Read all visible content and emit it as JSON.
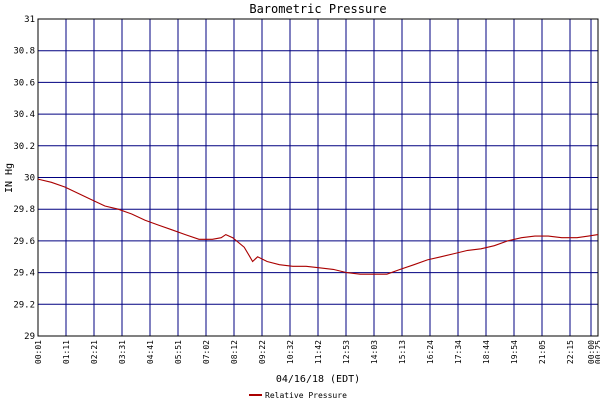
{
  "chart_data": {
    "type": "line",
    "title": "Barometric Pressure",
    "xlabel": "04/16/18 (EDT)",
    "ylabel": "IN Hg",
    "ylim": [
      29,
      31
    ],
    "yticks": [
      29,
      29.2,
      29.4,
      29.6,
      29.8,
      30,
      30.2,
      30.4,
      30.6,
      30.8,
      31
    ],
    "ytick_labels": [
      "29",
      "29.2",
      "29.4",
      "29.6",
      "29.8",
      "30",
      "30.2",
      "30.4",
      "30.6",
      "30.8",
      "31"
    ],
    "xtick_labels": [
      "00:01",
      "01:11",
      "02:21",
      "03:31",
      "04:41",
      "05:51",
      "07:02",
      "08:12",
      "09:22",
      "10:32",
      "11:42",
      "12:53",
      "14:03",
      "15:13",
      "16:24",
      "17:34",
      "18:44",
      "19:54",
      "21:05",
      "22:15",
      "00:00",
      "00:25"
    ],
    "grid": true,
    "legend": "bottom-center",
    "colors": {
      "series": "#aa0000",
      "grid": "#000080",
      "axes": "#000000",
      "background": "#ffffff"
    },
    "series": [
      {
        "name": "Relative Pressure",
        "points": [
          [
            "00:01",
            29.99
          ],
          [
            "00:36",
            29.97
          ],
          [
            "01:11",
            29.94
          ],
          [
            "01:46",
            29.9
          ],
          [
            "02:21",
            29.86
          ],
          [
            "02:56",
            29.82
          ],
          [
            "03:31",
            29.8
          ],
          [
            "04:06",
            29.77
          ],
          [
            "04:41",
            29.73
          ],
          [
            "05:16",
            29.7
          ],
          [
            "05:51",
            29.67
          ],
          [
            "06:26",
            29.64
          ],
          [
            "07:02",
            29.61
          ],
          [
            "07:37",
            29.61
          ],
          [
            "08:00",
            29.62
          ],
          [
            "08:12",
            29.64
          ],
          [
            "08:30",
            29.62
          ],
          [
            "09:00",
            29.56
          ],
          [
            "09:15",
            29.5
          ],
          [
            "09:22",
            29.47
          ],
          [
            "09:35",
            29.5
          ],
          [
            "10:00",
            29.47
          ],
          [
            "10:32",
            29.45
          ],
          [
            "11:07",
            29.44
          ],
          [
            "11:42",
            29.44
          ],
          [
            "12:17",
            29.43
          ],
          [
            "12:53",
            29.42
          ],
          [
            "13:28",
            29.4
          ],
          [
            "14:03",
            29.39
          ],
          [
            "14:38",
            29.39
          ],
          [
            "15:13",
            29.39
          ],
          [
            "15:48",
            29.42
          ],
          [
            "16:24",
            29.45
          ],
          [
            "16:59",
            29.48
          ],
          [
            "17:34",
            29.5
          ],
          [
            "18:09",
            29.52
          ],
          [
            "18:44",
            29.54
          ],
          [
            "19:19",
            29.55
          ],
          [
            "19:54",
            29.57
          ],
          [
            "20:29",
            29.6
          ],
          [
            "21:05",
            29.62
          ],
          [
            "21:40",
            29.63
          ],
          [
            "22:15",
            29.63
          ],
          [
            "22:50",
            29.62
          ],
          [
            "23:30",
            29.62
          ],
          [
            "00:00",
            29.63
          ],
          [
            "00:25",
            29.64
          ]
        ]
      }
    ]
  }
}
